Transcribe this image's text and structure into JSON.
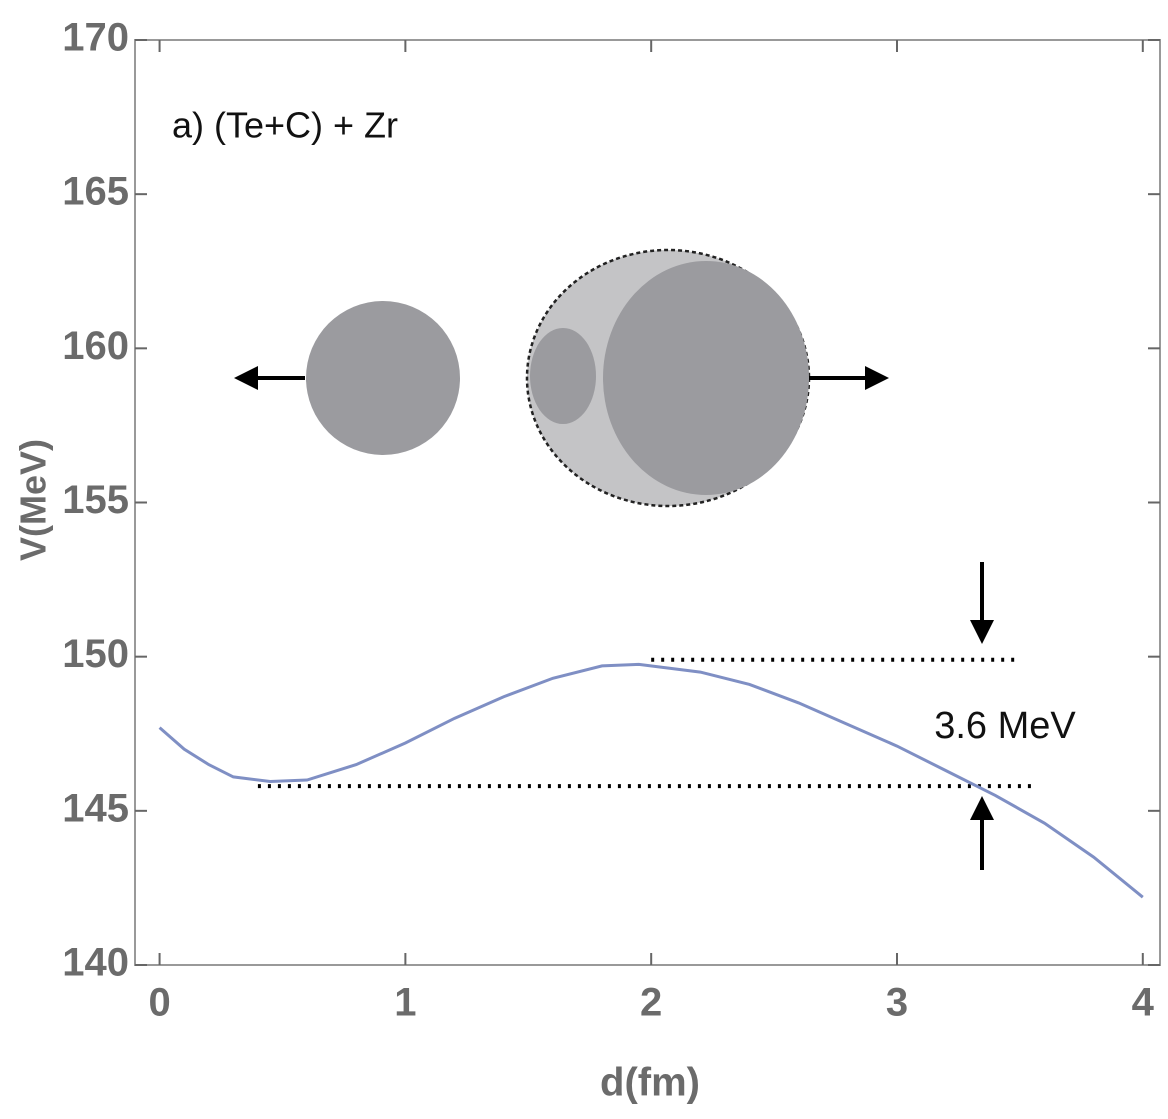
{
  "chart_data": {
    "type": "line",
    "title": "a)  (Te+C) + Zr",
    "annotation": "3.6 MeV",
    "xlabel": "d(fm)",
    "ylabel": "V(MeV)",
    "x": [
      0,
      0.1,
      0.2,
      0.3,
      0.45,
      0.6,
      0.8,
      1.0,
      1.2,
      1.4,
      1.6,
      1.8,
      1.95,
      2.2,
      2.4,
      2.6,
      2.8,
      3.0,
      3.2,
      3.4,
      3.6,
      3.8,
      4.0
    ],
    "series": [
      {
        "color": "#7f8fc4",
        "values": [
          147.7,
          147.0,
          146.5,
          146.1,
          145.95,
          146.0,
          146.5,
          147.2,
          148.0,
          148.7,
          149.3,
          149.7,
          149.75,
          149.5,
          149.1,
          148.5,
          147.8,
          147.1,
          146.3,
          145.5,
          144.6,
          143.5,
          142.2
        ]
      }
    ],
    "levels": [
      {
        "y": 149.9,
        "x": [
          2.0,
          3.5
        ]
      },
      {
        "y": 145.8,
        "x": [
          0.4,
          3.55
        ]
      }
    ],
    "xlim": [
      -0.1,
      4.07
    ],
    "ylim": [
      140,
      170
    ],
    "xticks": [
      0,
      1,
      2,
      3,
      4
    ],
    "yticks": [
      140,
      145,
      150,
      155,
      160,
      165,
      170
    ]
  }
}
